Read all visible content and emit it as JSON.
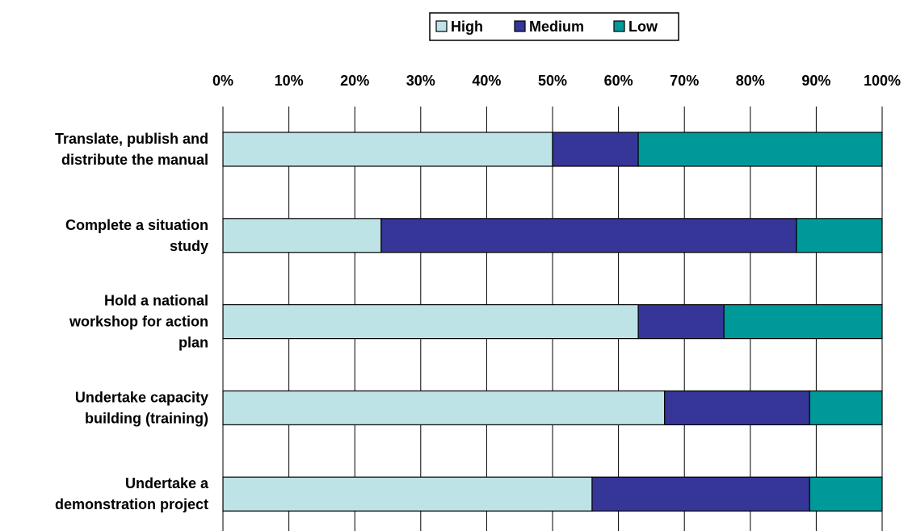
{
  "chart_data": {
    "type": "bar",
    "orientation": "horizontal",
    "stacked": "percent",
    "categories": [
      [
        "Translate, publish and",
        "distribute the manual"
      ],
      [
        "Complete a situation",
        "study"
      ],
      [
        "Hold a national",
        "workshop for action",
        "plan"
      ],
      [
        "Undertake capacity",
        "building (training)"
      ],
      [
        "Undertake a",
        "demonstration project"
      ]
    ],
    "series": [
      {
        "name": "High",
        "color": "#BDE3E6",
        "values": [
          50,
          24,
          63,
          67,
          56
        ]
      },
      {
        "name": "Medium",
        "color": "#363699",
        "values": [
          13,
          63,
          13,
          22,
          33
        ]
      },
      {
        "name": "Low",
        "color": "#009999",
        "values": [
          37,
          13,
          24,
          11,
          11
        ]
      }
    ],
    "xlim": [
      0,
      100
    ],
    "x_ticks": [
      "0%",
      "10%",
      "20%",
      "30%",
      "40%",
      "50%",
      "60%",
      "70%",
      "80%",
      "90%",
      "100%"
    ],
    "x_tick_values": [
      0,
      10,
      20,
      30,
      40,
      50,
      60,
      70,
      80,
      90,
      100
    ],
    "x_axis_position": "top",
    "grid": "vertical",
    "legend_position": "top"
  }
}
